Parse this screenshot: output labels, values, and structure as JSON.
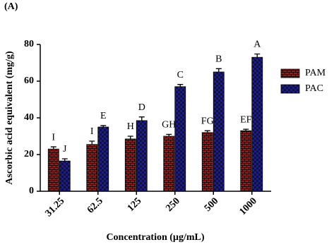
{
  "chart_data": {
    "type": "bar",
    "panel_label": "(A)",
    "y_label": "Ascorbic acid equivalent (mg/g)",
    "x_label": "Concentration (µg/mL)",
    "categories": [
      "31.25",
      "62.5",
      "125",
      "250",
      "500",
      "1000"
    ],
    "series": [
      {
        "name": "PAM",
        "color": "#8b1e1e",
        "values": [
          23,
          25.5,
          28.5,
          30,
          32,
          33
        ],
        "errors": [
          1.2,
          1.8,
          1.5,
          1,
          1,
          0.8
        ],
        "labels": [
          "I",
          "I",
          "H",
          "GH",
          "FG",
          "EF"
        ]
      },
      {
        "name": "PAC",
        "color": "#1e1e8b",
        "values": [
          16.5,
          35,
          38.5,
          57,
          65,
          73
        ],
        "errors": [
          1.2,
          0.8,
          2,
          1.2,
          1.8,
          1.8
        ],
        "labels": [
          "J",
          "E",
          "D",
          "C",
          "B",
          "A"
        ]
      }
    ],
    "ylim": [
      0,
      80
    ],
    "yticks": [
      0,
      20,
      40,
      60,
      80
    ],
    "grid": false,
    "legend": "upper right"
  }
}
